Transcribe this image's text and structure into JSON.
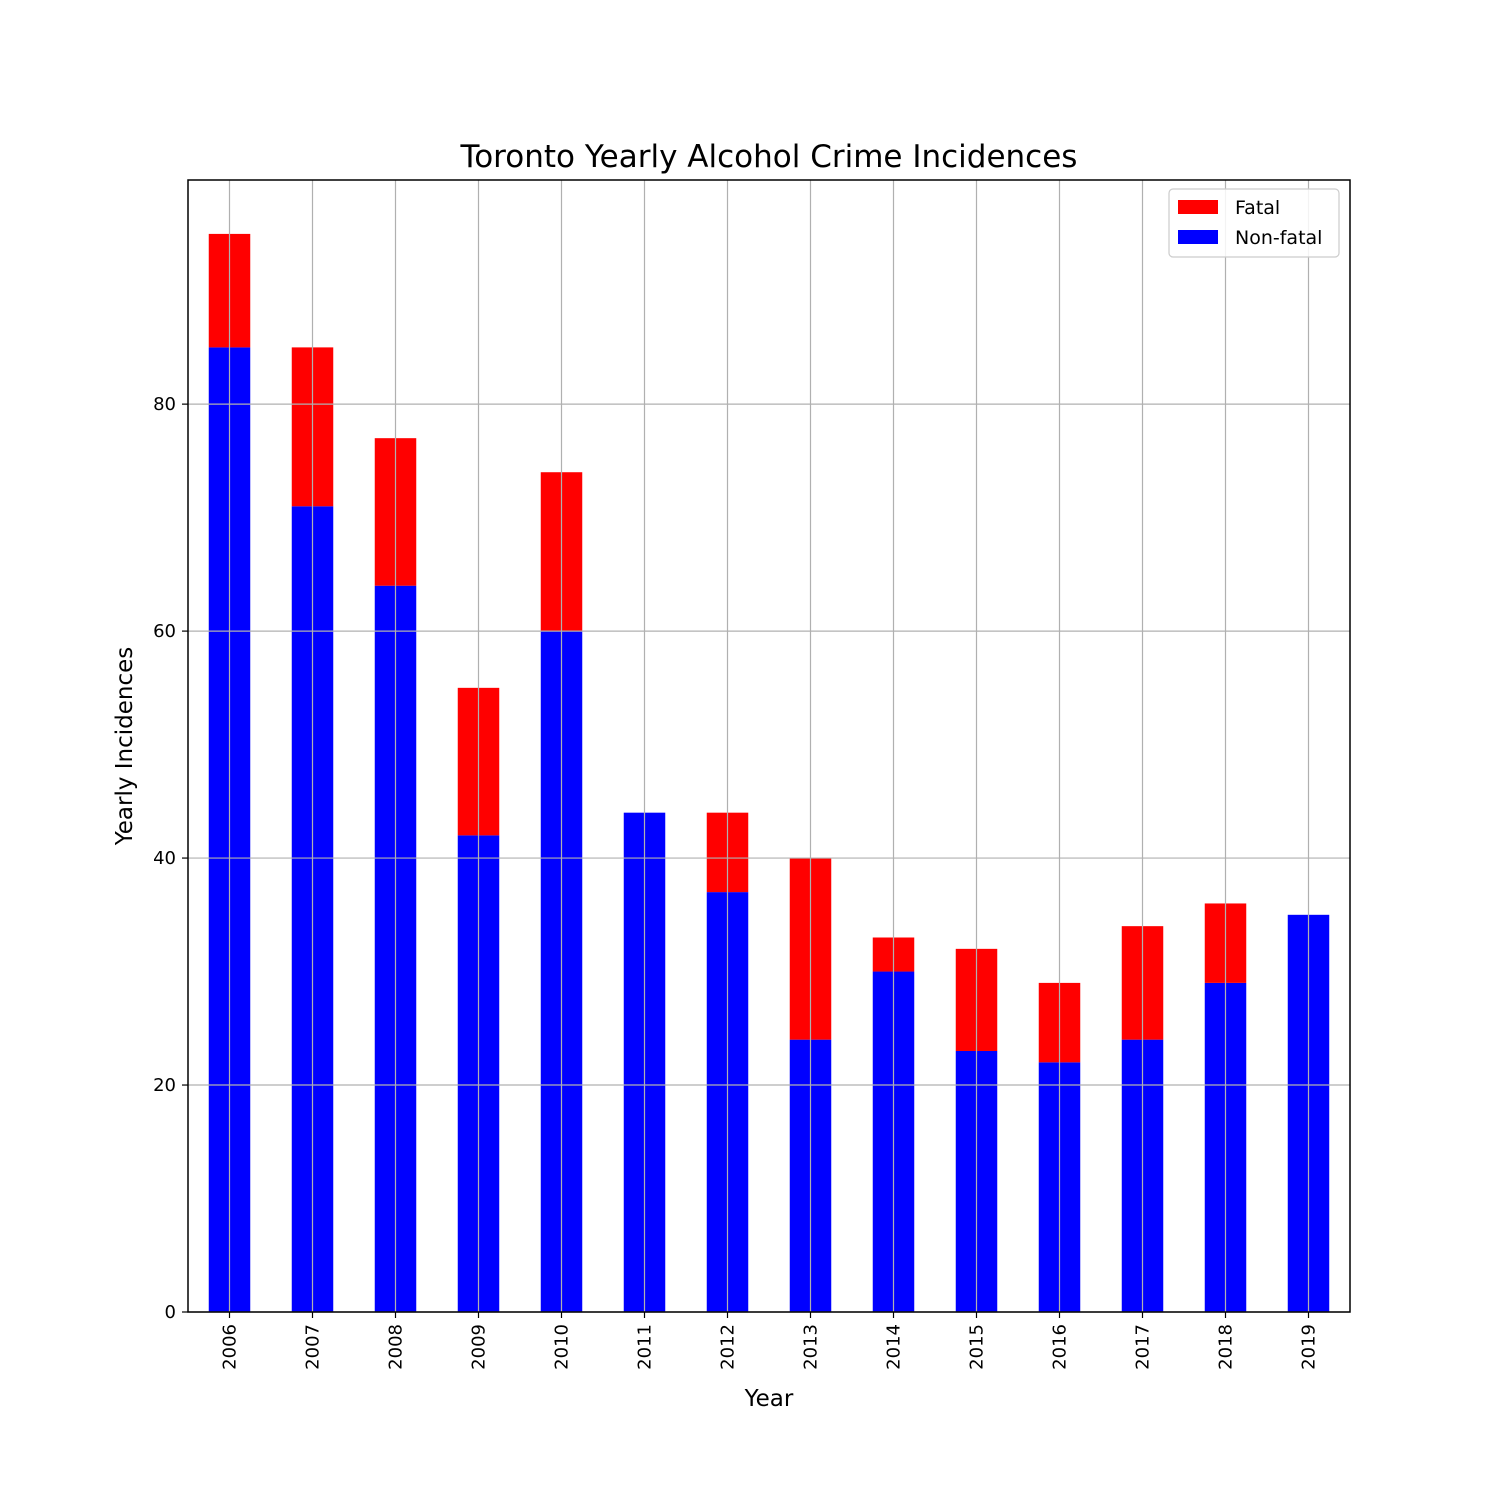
{
  "chart_data": {
    "type": "bar",
    "stacked": true,
    "title": "Toronto Yearly Alcohol Crime Incidences",
    "xlabel": "Year",
    "ylabel": "Yearly Incidences",
    "categories": [
      "2006",
      "2007",
      "2008",
      "2009",
      "2010",
      "2011",
      "2012",
      "2013",
      "2014",
      "2015",
      "2016",
      "2017",
      "2018",
      "2019"
    ],
    "series": [
      {
        "name": "Non-fatal",
        "color": "#0000ff",
        "values": [
          85,
          71,
          64,
          42,
          60,
          44,
          37,
          24,
          30,
          23,
          22,
          24,
          29,
          35
        ]
      },
      {
        "name": "Fatal",
        "color": "#ff0000",
        "values": [
          10,
          14,
          13,
          13,
          14,
          0,
          7,
          16,
          3,
          9,
          7,
          10,
          7,
          0
        ]
      }
    ],
    "ylim": [
      0,
      99.75
    ],
    "yticks": [
      0,
      20,
      40,
      60,
      80
    ],
    "grid": true,
    "legend_position": "top-right",
    "legend_order": [
      "Fatal",
      "Non-fatal"
    ]
  }
}
